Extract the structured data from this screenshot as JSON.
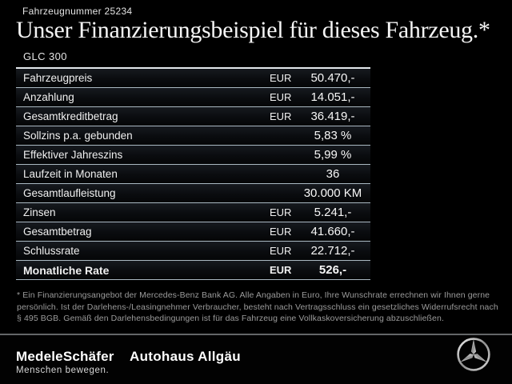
{
  "header": {
    "vehicle_number": "Fahrzeugnummer 25234",
    "title": "Unser Finanzierungsbeispiel für dieses Fahrzeug.*",
    "model": "GLC 300"
  },
  "financing_table": {
    "rows": [
      {
        "label": "Fahrzeugpreis",
        "currency": "EUR",
        "value": "50.470,-",
        "emphasis": false
      },
      {
        "label": "Anzahlung",
        "currency": "EUR",
        "value": "14.051,-",
        "emphasis": false
      },
      {
        "label": "Gesamtkreditbetrag",
        "currency": "EUR",
        "value": "36.419,-",
        "emphasis": false
      },
      {
        "label": "Sollzins p.a. gebunden",
        "currency": "",
        "value": "5,83 %",
        "emphasis": false
      },
      {
        "label": "Effektiver Jahreszins",
        "currency": "",
        "value": "5,99 %",
        "emphasis": false
      },
      {
        "label": "Laufzeit in Monaten",
        "currency": "",
        "value": "36",
        "emphasis": false
      },
      {
        "label": "Gesamtlaufleistung",
        "currency": "",
        "value": "30.000 KM",
        "emphasis": false
      },
      {
        "label": "Zinsen",
        "currency": "EUR",
        "value": "5.241,-",
        "emphasis": false
      },
      {
        "label": "Gesamtbetrag",
        "currency": "EUR",
        "value": "41.660,-",
        "emphasis": false
      },
      {
        "label": "Schlussrate",
        "currency": "EUR",
        "value": "22.712,-",
        "emphasis": false
      },
      {
        "label": "Monatliche Rate",
        "currency": "EUR",
        "value": "526,-",
        "emphasis": true
      }
    ]
  },
  "footnote": "* Ein Finanzierungsangebot der Mercedes-Benz Bank AG. Alle Angaben in Euro, Ihre Wunschrate errechnen wir Ihnen gerne persönlich. Ist der Darlehens-/Leasingnehmer Verbraucher, besteht nach Vertragsschluss ein gesetzliches Widerrufsrecht nach § 495 BGB. Gemäß den Darlehensbedingungen ist für das Fahrzeug eine Vollkaskoversicherung abzuschließen.",
  "footer": {
    "dealer_logo_text": "MedeleSchäfer",
    "dealer_tagline": "Menschen bewegen.",
    "dealer_branch": "Autohaus Allgäu",
    "brand_logo": "mercedes-benz-star"
  },
  "colors": {
    "background": "#000000",
    "text_primary": "#f2f2f2",
    "row_separator": "#aab8c2",
    "table_top_border": "#e3e8ec",
    "footnote_text": "#9b9b9b",
    "footer_divider": "#646668",
    "star_silver": "#c9c9c9"
  }
}
